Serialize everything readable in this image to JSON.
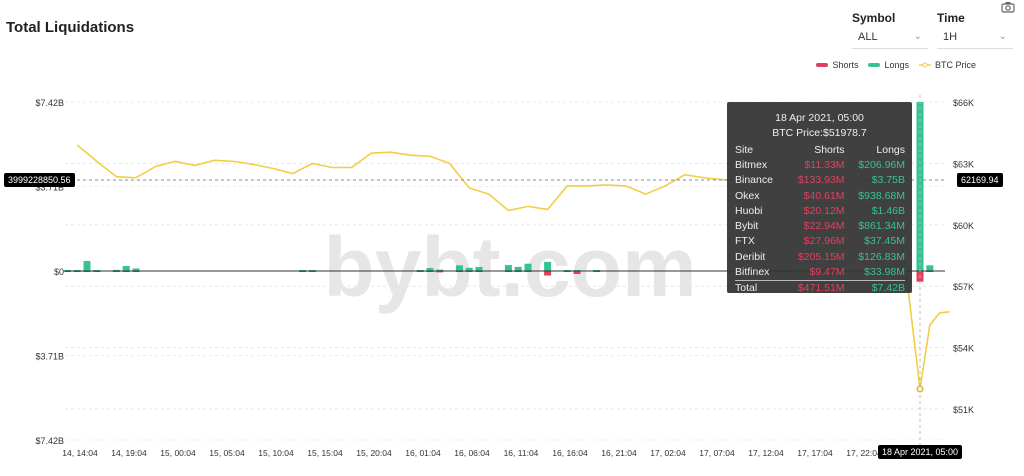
{
  "title": "Total Liquidations",
  "controls": {
    "symbol_label": "Symbol",
    "symbol_value": "ALL",
    "time_label": "Time",
    "time_value": "1H",
    "camera_icon": "camera-icon"
  },
  "watermark": "bybt.com",
  "colors": {
    "shorts": "#e0405e",
    "longs": "#35c48f",
    "btc_price": "#f0cf45"
  },
  "crosshair": {
    "left_value": "3999228850.56",
    "right_value": "62169.94",
    "x_value": "18 Apr 2021, 05:00"
  },
  "tooltip": {
    "date": "18 Apr 2021, 05:00",
    "btc_price": "BTC Price:$51978.7",
    "headers": [
      "Site",
      "Shorts",
      "Longs"
    ],
    "rows": [
      {
        "site": "Bitmex",
        "shorts": "$11.33M",
        "longs": "$206.96M"
      },
      {
        "site": "Binance",
        "shorts": "$133.93M",
        "longs": "$3.75B"
      },
      {
        "site": "Okex",
        "shorts": "$40.61M",
        "longs": "$938.68M"
      },
      {
        "site": "Huobi",
        "shorts": "$20.12M",
        "longs": "$1.46B"
      },
      {
        "site": "Bybit",
        "shorts": "$22.94M",
        "longs": "$861.34M"
      },
      {
        "site": "FTX",
        "shorts": "$27.96M",
        "longs": "$37.45M"
      },
      {
        "site": "Deribit",
        "shorts": "$205.15M",
        "longs": "$126.83M"
      },
      {
        "site": "Bitfinex",
        "shorts": "$9.47M",
        "longs": "$33.98M"
      }
    ],
    "total": {
      "site": "Total",
      "shorts": "$471.51M",
      "longs": "$7.42B"
    }
  },
  "chart_data": {
    "type": "bar+line",
    "legend": [
      "Shorts",
      "Longs",
      "BTC Price"
    ],
    "legend_position": "top-right",
    "grid": true,
    "y_left": {
      "ticks": [
        "$7.42B",
        "$3.71B",
        "$0",
        "$3.71B",
        "$7.42B"
      ],
      "range_billions": [
        -7.42,
        7.42
      ]
    },
    "y_right": {
      "ticks": [
        "$66K",
        "$63K",
        "$60K",
        "$57K",
        "$54K",
        "$51K"
      ],
      "range_thousands": [
        51,
        66
      ]
    },
    "x_ticks": [
      "14, 14:04",
      "14, 19:04",
      "15, 00:04",
      "15, 05:04",
      "15, 10:04",
      "15, 15:04",
      "15, 20:04",
      "16, 01:04",
      "16, 06:04",
      "16, 11:04",
      "16, 16:04",
      "16, 21:04",
      "17, 02:04",
      "17, 07:04",
      "17, 12:04",
      "17, 17:04",
      "17, 22:04"
    ],
    "btc_price_k": [
      [
        "14 15:00",
        63.9
      ],
      [
        "14 17:00",
        63.1
      ],
      [
        "14 19:00",
        62.35
      ],
      [
        "14 21:00",
        62.3
      ],
      [
        "14 23:00",
        62.85
      ],
      [
        "15 01:00",
        63.1
      ],
      [
        "15 03:00",
        62.9
      ],
      [
        "15 05:00",
        63.15
      ],
      [
        "15 07:00",
        63.1
      ],
      [
        "15 09:00",
        62.95
      ],
      [
        "15 11:00",
        62.75
      ],
      [
        "15 13:00",
        62.5
      ],
      [
        "15 15:00",
        63.0
      ],
      [
        "15 17:00",
        62.8
      ],
      [
        "15 19:00",
        62.8
      ],
      [
        "15 21:00",
        63.5
      ],
      [
        "15 23:00",
        63.55
      ],
      [
        "16 01:00",
        63.4
      ],
      [
        "16 03:00",
        63.35
      ],
      [
        "16 05:00",
        63.0
      ],
      [
        "16 07:00",
        61.8
      ],
      [
        "16 09:00",
        61.5
      ],
      [
        "16 11:00",
        60.7
      ],
      [
        "16 13:00",
        60.9
      ],
      [
        "16 15:00",
        60.75
      ],
      [
        "16 17:00",
        61.9
      ],
      [
        "16 19:00",
        61.9
      ],
      [
        "16 21:00",
        61.95
      ],
      [
        "16 23:00",
        61.9
      ],
      [
        "17 01:00",
        61.5
      ],
      [
        "17 03:00",
        61.9
      ],
      [
        "17 05:00",
        62.45
      ],
      [
        "17 07:00",
        62.3
      ],
      [
        "17 09:00",
        62.2
      ],
      [
        "17 11:00",
        62.2
      ],
      [
        "17 13:00",
        61.9
      ],
      [
        "17 15:00",
        61.3
      ],
      [
        "17 17:00",
        61.0
      ],
      [
        "17 19:00",
        61.1
      ],
      [
        "17 21:00",
        61.0
      ],
      [
        "17 23:00",
        60.9
      ],
      [
        "18 01:00",
        60.8
      ],
      [
        "18 03:00",
        60.0
      ],
      [
        "18 05:00",
        51.98
      ],
      [
        "18 06:00",
        55.1
      ],
      [
        "18 07:00",
        55.7
      ],
      [
        "18 08:00",
        55.75
      ]
    ],
    "liquidations_m": [
      {
        "t": "14 14:00",
        "longs": 40,
        "shorts": 5
      },
      {
        "t": "14 15:00",
        "longs": 30,
        "shorts": 3
      },
      {
        "t": "14 16:00",
        "longs": 440,
        "shorts": 5
      },
      {
        "t": "14 17:00",
        "longs": 30,
        "shorts": 3
      },
      {
        "t": "14 19:00",
        "longs": 50,
        "shorts": 5
      },
      {
        "t": "14 20:00",
        "longs": 220,
        "shorts": 5
      },
      {
        "t": "14 21:00",
        "longs": 110,
        "shorts": 5
      },
      {
        "t": "15 14:00",
        "longs": 40,
        "shorts": 3
      },
      {
        "t": "15 15:00",
        "longs": 40,
        "shorts": 3
      },
      {
        "t": "16 02:00",
        "longs": 40,
        "shorts": 40
      },
      {
        "t": "16 03:00",
        "longs": 130,
        "shorts": 10
      },
      {
        "t": "16 04:00",
        "longs": 60,
        "shorts": 60
      },
      {
        "t": "16 06:00",
        "longs": 250,
        "shorts": 10
      },
      {
        "t": "16 07:00",
        "longs": 140,
        "shorts": 5
      },
      {
        "t": "16 08:00",
        "longs": 180,
        "shorts": 5
      },
      {
        "t": "16 11:00",
        "longs": 260,
        "shorts": 10
      },
      {
        "t": "16 12:00",
        "longs": 180,
        "shorts": 5
      },
      {
        "t": "16 13:00",
        "longs": 320,
        "shorts": 10
      },
      {
        "t": "16 15:00",
        "longs": 400,
        "shorts": 200
      },
      {
        "t": "16 17:00",
        "longs": 30,
        "shorts": 40
      },
      {
        "t": "16 18:00",
        "longs": 30,
        "shorts": 130
      },
      {
        "t": "16 20:00",
        "longs": 30,
        "shorts": 10
      },
      {
        "t": "17 14:00",
        "longs": 30,
        "shorts": 3
      },
      {
        "t": "17 15:00",
        "longs": 30,
        "shorts": 3
      },
      {
        "t": "18 05:00",
        "longs": 7420,
        "shorts": 471.51
      },
      {
        "t": "18 06:00",
        "longs": 250,
        "shorts": 30
      }
    ]
  }
}
